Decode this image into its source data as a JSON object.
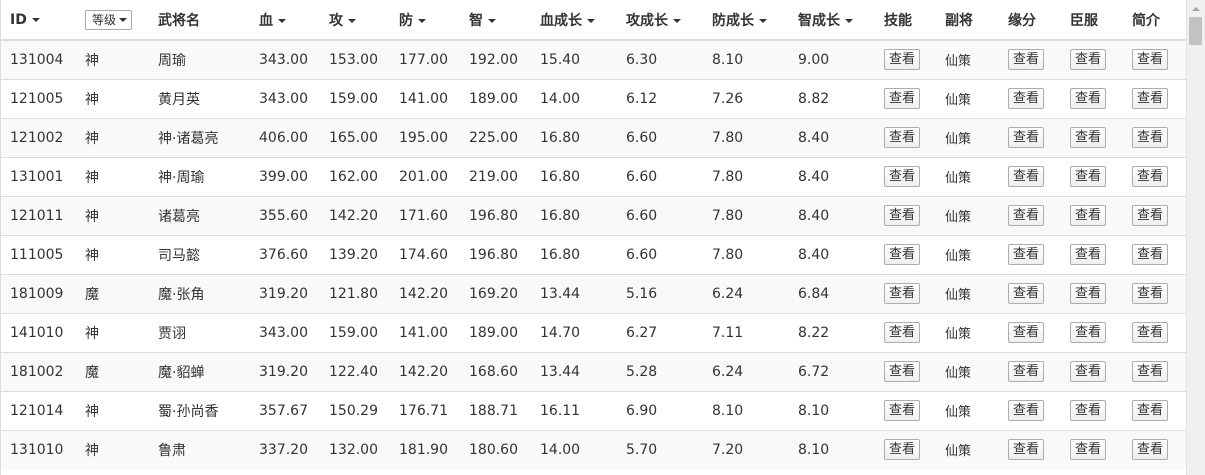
{
  "table": {
    "columns": {
      "id": "ID",
      "level": "等级",
      "name": "武将名",
      "hp": "血",
      "atk": "攻",
      "def": "防",
      "int": "智",
      "hp_growth": "血成长",
      "atk_growth": "攻成长",
      "def_growth": "防成长",
      "int_growth": "智成长",
      "skill": "技能",
      "vice": "副将",
      "fate": "缘分",
      "subdue": "臣服",
      "intro": "简介"
    },
    "view_label": "查看",
    "rows": [
      {
        "id": "131004",
        "level": "神",
        "name": "周瑜",
        "hp": "343.00",
        "atk": "153.00",
        "def": "177.00",
        "int": "192.00",
        "hp_growth": "15.40",
        "atk_growth": "6.30",
        "def_growth": "8.10",
        "int_growth": "9.00",
        "vice": "仙策"
      },
      {
        "id": "121005",
        "level": "神",
        "name": "黄月英",
        "hp": "343.00",
        "atk": "159.00",
        "def": "141.00",
        "int": "189.00",
        "hp_growth": "14.00",
        "atk_growth": "6.12",
        "def_growth": "7.26",
        "int_growth": "8.82",
        "vice": "仙策"
      },
      {
        "id": "121002",
        "level": "神",
        "name": "神·诸葛亮",
        "hp": "406.00",
        "atk": "165.00",
        "def": "195.00",
        "int": "225.00",
        "hp_growth": "16.80",
        "atk_growth": "6.60",
        "def_growth": "7.80",
        "int_growth": "8.40",
        "vice": "仙策"
      },
      {
        "id": "131001",
        "level": "神",
        "name": "神·周瑜",
        "hp": "399.00",
        "atk": "162.00",
        "def": "201.00",
        "int": "219.00",
        "hp_growth": "16.80",
        "atk_growth": "6.60",
        "def_growth": "7.80",
        "int_growth": "8.40",
        "vice": "仙策"
      },
      {
        "id": "121011",
        "level": "神",
        "name": "诸葛亮",
        "hp": "355.60",
        "atk": "142.20",
        "def": "171.60",
        "int": "196.80",
        "hp_growth": "16.80",
        "atk_growth": "6.60",
        "def_growth": "7.80",
        "int_growth": "8.40",
        "vice": "仙策"
      },
      {
        "id": "111005",
        "level": "神",
        "name": "司马懿",
        "hp": "376.60",
        "atk": "139.20",
        "def": "174.60",
        "int": "196.80",
        "hp_growth": "16.80",
        "atk_growth": "6.60",
        "def_growth": "7.80",
        "int_growth": "8.40",
        "vice": "仙策"
      },
      {
        "id": "181009",
        "level": "魔",
        "name": "魔·张角",
        "hp": "319.20",
        "atk": "121.80",
        "def": "142.20",
        "int": "169.20",
        "hp_growth": "13.44",
        "atk_growth": "5.16",
        "def_growth": "6.24",
        "int_growth": "6.84",
        "vice": "仙策"
      },
      {
        "id": "141010",
        "level": "神",
        "name": "贾诩",
        "hp": "343.00",
        "atk": "159.00",
        "def": "141.00",
        "int": "189.00",
        "hp_growth": "14.70",
        "atk_growth": "6.27",
        "def_growth": "7.11",
        "int_growth": "8.22",
        "vice": "仙策"
      },
      {
        "id": "181002",
        "level": "魔",
        "name": "魔·貂蝉",
        "hp": "319.20",
        "atk": "122.40",
        "def": "142.20",
        "int": "168.60",
        "hp_growth": "13.44",
        "atk_growth": "5.28",
        "def_growth": "6.24",
        "int_growth": "6.72",
        "vice": "仙策"
      },
      {
        "id": "121014",
        "level": "神",
        "name": "蜀·孙尚香",
        "hp": "357.67",
        "atk": "150.29",
        "def": "176.71",
        "int": "188.71",
        "hp_growth": "16.11",
        "atk_growth": "6.90",
        "def_growth": "8.10",
        "int_growth": "8.10",
        "vice": "仙策"
      },
      {
        "id": "131010",
        "level": "神",
        "name": "鲁肃",
        "hp": "337.20",
        "atk": "132.00",
        "def": "181.90",
        "int": "180.60",
        "hp_growth": "14.00",
        "atk_growth": "5.70",
        "def_growth": "7.20",
        "int_growth": "8.10",
        "vice": "仙策"
      }
    ]
  },
  "icons": {
    "sort": "caret-down-icon",
    "scroll_up": "arrow-up-icon"
  },
  "colors": {
    "border": "#dddddd",
    "stripe": "#f9f9f9",
    "text": "#333333"
  }
}
